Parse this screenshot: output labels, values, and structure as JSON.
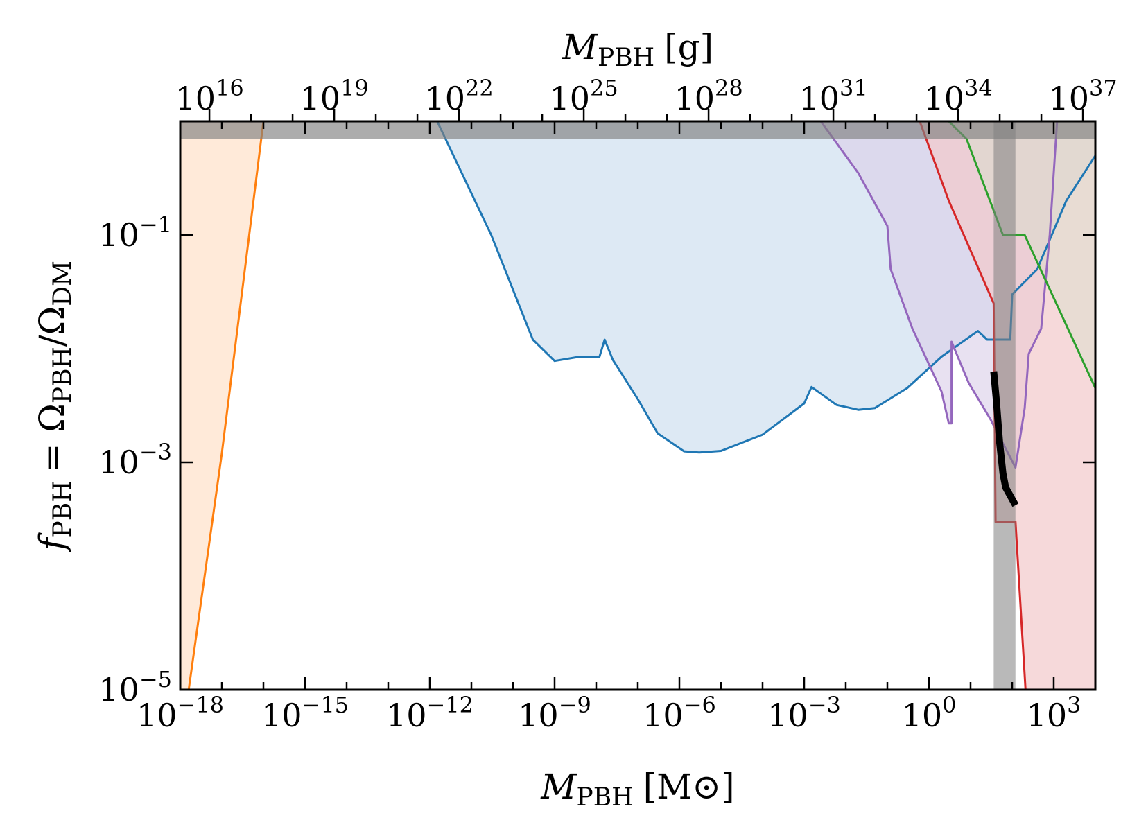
{
  "chart_data": {
    "type": "area",
    "title": "",
    "x_axis": {
      "label_symbol": "M",
      "label_subscript": "PBH",
      "label_unit": "[M⊙]",
      "scale": "log",
      "xlim": [
        1e-18,
        10000.0
      ],
      "tick_base": "10",
      "tick_exponents": [
        "−18",
        "−15",
        "−12",
        "−9",
        "−6",
        "−3",
        "0",
        "3"
      ]
    },
    "x2_axis": {
      "label_symbol": "M",
      "label_subscript": "PBH",
      "label_unit": "[g]",
      "scale": "log",
      "note_conversion": "1 M⊙ ≈ 2e33 g",
      "tick_base": "10",
      "tick_exponents": [
        "16",
        "19",
        "22",
        "25",
        "28",
        "31",
        "34",
        "37"
      ]
    },
    "y_axis": {
      "label": "f_PBH = Ω_PBH/Ω_DM",
      "label_f": "f",
      "label_f_sub": "PBH",
      "label_rest": "= Ω",
      "label_num_sub": "PBH",
      "label_slash": "/Ω",
      "label_den_sub": "DM",
      "scale": "log",
      "ylim": [
        1e-05,
        1
      ],
      "tick_base": "10",
      "tick_exponents": [
        "−5",
        "−3",
        "−1"
      ]
    },
    "grid": false,
    "legend": "none",
    "series": [
      {
        "color": "#ff7f0e",
        "fill": "#ffe6d2",
        "fill_opacity": 0.85,
        "points": [
          [
            1e-18,
            1e-05
          ],
          [
            1.6e-18,
            1e-05
          ],
          [
            1e-17,
            0.0012
          ],
          [
            1e-16,
            1
          ],
          [
            1e-18,
            1
          ]
        ]
      },
      {
        "color": "#1f77b4",
        "fill": "#c7dbed",
        "fill_opacity": 0.6,
        "points": [
          [
            1.5e-12,
            1
          ],
          [
            3e-11,
            0.1
          ],
          [
            3e-10,
            0.012
          ],
          [
            1e-09,
            0.0078
          ],
          [
            4e-09,
            0.0085
          ],
          [
            1.2e-08,
            0.0085
          ],
          [
            1.6e-08,
            0.012
          ],
          [
            2.5e-08,
            0.008
          ],
          [
            1e-07,
            0.0036
          ],
          [
            3e-07,
            0.0018
          ],
          [
            1.3e-06,
            0.00125
          ],
          [
            3e-06,
            0.00122
          ],
          [
            1e-05,
            0.00126
          ],
          [
            0.0001,
            0.00175
          ],
          [
            0.001,
            0.0033
          ],
          [
            0.0015,
            0.0046
          ],
          [
            0.006,
            0.0032
          ],
          [
            0.02,
            0.0029
          ],
          [
            0.05,
            0.003
          ],
          [
            0.3,
            0.0045
          ],
          [
            2.0,
            0.0085
          ],
          [
            15.0,
            0.0143
          ],
          [
            25.0,
            0.012
          ],
          [
            90.0,
            0.012
          ],
          [
            100.0,
            0.03
          ],
          [
            400.0,
            0.05
          ],
          [
            2000.0,
            0.2
          ],
          [
            10000.0,
            0.5
          ],
          [
            10000.0,
            1
          ],
          [
            1.5e-12,
            1
          ]
        ]
      },
      {
        "color": "#9467bd",
        "fill": "#dcd1ea",
        "fill_opacity": 0.65,
        "points": [
          [
            0.0025,
            1
          ],
          [
            0.02,
            0.35
          ],
          [
            0.1,
            0.12
          ],
          [
            0.12,
            0.05
          ],
          [
            0.4,
            0.015
          ],
          [
            2.0,
            0.0042
          ],
          [
            3.0,
            0.0022
          ],
          [
            3.5,
            0.0022
          ],
          [
            3.5,
            0.0115
          ],
          [
            9.0,
            0.005
          ],
          [
            30.0,
            0.0024
          ],
          [
            120.0,
            0.0009
          ],
          [
            200.0,
            0.003
          ],
          [
            250.0,
            0.009
          ],
          [
            500.0,
            0.015
          ],
          [
            800.0,
            0.1
          ],
          [
            1200.0,
            1
          ],
          [
            0.0025,
            1
          ]
        ]
      },
      {
        "color": "#d62728",
        "fill": "#f2c9cb",
        "fill_opacity": 0.7,
        "points": [
          [
            0.6,
            1
          ],
          [
            3.0,
            0.2
          ],
          [
            36.0,
            0.025
          ],
          [
            40.0,
            0.0003
          ],
          [
            120.0,
            0.0003
          ],
          [
            210.0,
            1e-05
          ],
          [
            10000.0,
            1e-05
          ],
          [
            10000.0,
            1
          ],
          [
            0.6,
            1
          ]
        ]
      },
      {
        "color": "#2ca02c",
        "fill": "#d6dfc9",
        "fill_opacity": 0.45,
        "points": [
          [
            3.0,
            1
          ],
          [
            8.0,
            0.7
          ],
          [
            60.0,
            0.1
          ],
          [
            200.0,
            0.1
          ],
          [
            10000.0,
            0.0045
          ],
          [
            10000.0,
            1
          ],
          [
            3.0,
            1
          ]
        ]
      }
    ],
    "shaded_bands": [
      {
        "x_range": [
          1e-18,
          10000.0
        ],
        "y_range": [
          0.7,
          1
        ],
        "color": "#808080",
        "opacity": 0.65
      },
      {
        "x_range": [
          36.0,
          120.0
        ],
        "y_range": [
          1e-05,
          1
        ],
        "color": "#808080",
        "opacity": 0.55
      }
    ],
    "highlight_curve": {
      "color": "#000000",
      "points": [
        [
          36.0,
          0.0063
        ],
        [
          42.0,
          0.0034
        ],
        [
          50.0,
          0.0015
        ],
        [
          60.0,
          0.0008
        ],
        [
          70.0,
          0.0006
        ],
        [
          120.0,
          0.00042
        ]
      ]
    }
  }
}
